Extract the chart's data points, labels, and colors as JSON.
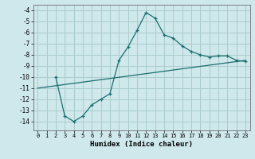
{
  "xlabel": "Humidex (Indice chaleur)",
  "background_color": "#cfe8ec",
  "grid_color": "#aacccc",
  "line_color": "#1a6e6e",
  "line1_x": [
    2,
    3,
    4,
    5,
    6,
    7,
    8,
    9,
    10,
    11,
    12,
    13,
    14,
    15,
    16,
    17,
    18,
    19,
    20,
    21,
    22,
    23
  ],
  "line1_y": [
    -10,
    -13.5,
    -14,
    -13.5,
    -12.5,
    -12.0,
    -11.5,
    -8.5,
    -7.3,
    -5.8,
    -4.2,
    -4.7,
    -6.2,
    -6.5,
    -7.2,
    -7.7,
    -8.0,
    -8.2,
    -8.1,
    -8.1,
    -8.5,
    -8.6
  ],
  "line2_x": [
    0,
    23
  ],
  "line2_y": [
    -11,
    -8.5
  ],
  "xlim": [
    -0.5,
    23.5
  ],
  "ylim": [
    -14.8,
    -3.5
  ],
  "yticks": [
    -4,
    -5,
    -6,
    -7,
    -8,
    -9,
    -10,
    -11,
    -12,
    -13,
    -14
  ],
  "xticks": [
    0,
    1,
    2,
    3,
    4,
    5,
    6,
    7,
    8,
    9,
    10,
    11,
    12,
    13,
    14,
    15,
    16,
    17,
    18,
    19,
    20,
    21,
    22,
    23
  ]
}
